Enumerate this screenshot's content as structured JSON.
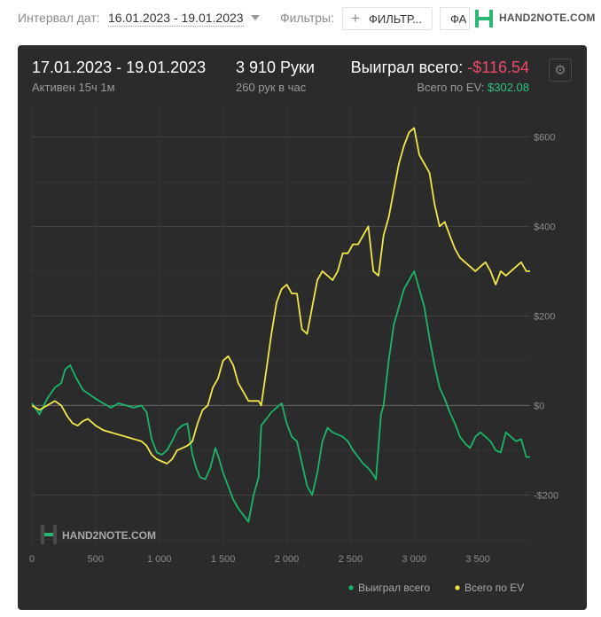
{
  "toolbar": {
    "interval_label": "Интервал дат:",
    "interval_value": "16.01.2023 - 19.01.2023",
    "filters_label": "Фильтры:",
    "filter_button": "ФИЛЬТР...",
    "fa_button": "ФА",
    "logo_text": "HAND2NOTE.COM"
  },
  "summary": {
    "date_range": "17.01.2023 - 19.01.2023",
    "active": "Активен 15ч 1м",
    "hands": "3 910 Руки",
    "hands_per_hour": "260 рук в час",
    "won_label": "Выиграл всего:",
    "won_value": "-$116.54",
    "ev_label": "Всего по EV:",
    "ev_value": "$302.08"
  },
  "watermark": "HAND2NOTE.COM",
  "colors": {
    "card_bg": "#2b2b2b",
    "won": "#1db56a",
    "ev": "#f0e84a",
    "negative": "#ec4a6d",
    "positive": "#2ec27e",
    "brand": "#2bb673"
  },
  "icons": [
    "plus-icon",
    "hand2note-logo-icon",
    "gear-icon"
  ],
  "chart_data": {
    "type": "line",
    "xlim": [
      0,
      3910
    ],
    "ylim": [
      -320,
      670
    ],
    "x_ticks": [
      0,
      500,
      1000,
      1500,
      2000,
      2500,
      3000,
      3500
    ],
    "x_tick_labels": [
      "0",
      "500",
      "1 000",
      "1 500",
      "2 000",
      "2 500",
      "3 000",
      "3 500"
    ],
    "y_ticks": [
      600,
      400,
      200,
      0,
      -200
    ],
    "y_tick_labels": [
      "$600",
      "$400",
      "$200",
      "$0",
      "-$200"
    ],
    "grid": true,
    "legend_position": "bottom-right",
    "series": [
      {
        "name": "Выиграл всего",
        "color": "#1db56a",
        "points": [
          [
            0,
            5
          ],
          [
            60,
            -20
          ],
          [
            120,
            15
          ],
          [
            180,
            40
          ],
          [
            230,
            50
          ],
          [
            260,
            80
          ],
          [
            300,
            90
          ],
          [
            350,
            60
          ],
          [
            400,
            35
          ],
          [
            450,
            25
          ],
          [
            500,
            15
          ],
          [
            560,
            5
          ],
          [
            620,
            -5
          ],
          [
            680,
            5
          ],
          [
            740,
            0
          ],
          [
            800,
            -5
          ],
          [
            860,
            0
          ],
          [
            900,
            -15
          ],
          [
            940,
            -75
          ],
          [
            980,
            -105
          ],
          [
            1020,
            -110
          ],
          [
            1060,
            -100
          ],
          [
            1100,
            -80
          ],
          [
            1140,
            -55
          ],
          [
            1180,
            -45
          ],
          [
            1220,
            -40
          ],
          [
            1260,
            -110
          ],
          [
            1290,
            -140
          ],
          [
            1320,
            -160
          ],
          [
            1360,
            -165
          ],
          [
            1400,
            -140
          ],
          [
            1440,
            -95
          ],
          [
            1470,
            -120
          ],
          [
            1500,
            -150
          ],
          [
            1540,
            -180
          ],
          [
            1580,
            -210
          ],
          [
            1620,
            -230
          ],
          [
            1660,
            -245
          ],
          [
            1700,
            -260
          ],
          [
            1740,
            -200
          ],
          [
            1780,
            -160
          ],
          [
            1800,
            -45
          ],
          [
            1840,
            -30
          ],
          [
            1880,
            -15
          ],
          [
            1920,
            -5
          ],
          [
            1960,
            5
          ],
          [
            2000,
            -40
          ],
          [
            2040,
            -70
          ],
          [
            2080,
            -80
          ],
          [
            2120,
            -130
          ],
          [
            2160,
            -180
          ],
          [
            2200,
            -200
          ],
          [
            2240,
            -150
          ],
          [
            2280,
            -80
          ],
          [
            2320,
            -50
          ],
          [
            2360,
            -60
          ],
          [
            2400,
            -65
          ],
          [
            2440,
            -70
          ],
          [
            2480,
            -80
          ],
          [
            2520,
            -100
          ],
          [
            2560,
            -115
          ],
          [
            2600,
            -130
          ],
          [
            2640,
            -140
          ],
          [
            2680,
            -155
          ],
          [
            2700,
            -165
          ],
          [
            2740,
            -20
          ],
          [
            2760,
            0
          ],
          [
            2800,
            100
          ],
          [
            2840,
            180
          ],
          [
            2880,
            220
          ],
          [
            2920,
            260
          ],
          [
            2960,
            280
          ],
          [
            3000,
            300
          ],
          [
            3040,
            260
          ],
          [
            3080,
            220
          ],
          [
            3120,
            150
          ],
          [
            3160,
            90
          ],
          [
            3200,
            40
          ],
          [
            3240,
            15
          ],
          [
            3280,
            -15
          ],
          [
            3320,
            -40
          ],
          [
            3360,
            -70
          ],
          [
            3400,
            -85
          ],
          [
            3440,
            -95
          ],
          [
            3480,
            -70
          ],
          [
            3520,
            -60
          ],
          [
            3560,
            -70
          ],
          [
            3600,
            -80
          ],
          [
            3640,
            -100
          ],
          [
            3680,
            -105
          ],
          [
            3720,
            -60
          ],
          [
            3760,
            -70
          ],
          [
            3800,
            -80
          ],
          [
            3840,
            -75
          ],
          [
            3880,
            -115
          ],
          [
            3910,
            -115
          ]
        ]
      },
      {
        "name": "Всего по EV",
        "color": "#f0e84a",
        "points": [
          [
            0,
            0
          ],
          [
            60,
            -10
          ],
          [
            120,
            0
          ],
          [
            180,
            10
          ],
          [
            230,
            0
          ],
          [
            280,
            -25
          ],
          [
            320,
            -40
          ],
          [
            360,
            -45
          ],
          [
            400,
            -35
          ],
          [
            440,
            -30
          ],
          [
            500,
            -45
          ],
          [
            560,
            -55
          ],
          [
            620,
            -60
          ],
          [
            680,
            -65
          ],
          [
            740,
            -70
          ],
          [
            800,
            -75
          ],
          [
            860,
            -80
          ],
          [
            900,
            -90
          ],
          [
            940,
            -110
          ],
          [
            980,
            -120
          ],
          [
            1020,
            -125
          ],
          [
            1060,
            -130
          ],
          [
            1100,
            -120
          ],
          [
            1140,
            -100
          ],
          [
            1180,
            -95
          ],
          [
            1220,
            -90
          ],
          [
            1260,
            -80
          ],
          [
            1300,
            -40
          ],
          [
            1340,
            -10
          ],
          [
            1380,
            0
          ],
          [
            1420,
            40
          ],
          [
            1460,
            60
          ],
          [
            1500,
            100
          ],
          [
            1540,
            110
          ],
          [
            1580,
            90
          ],
          [
            1620,
            50
          ],
          [
            1660,
            30
          ],
          [
            1700,
            10
          ],
          [
            1740,
            10
          ],
          [
            1780,
            10
          ],
          [
            1800,
            0
          ],
          [
            1840,
            80
          ],
          [
            1880,
            160
          ],
          [
            1920,
            230
          ],
          [
            1960,
            260
          ],
          [
            2000,
            270
          ],
          [
            2040,
            250
          ],
          [
            2080,
            250
          ],
          [
            2120,
            170
          ],
          [
            2160,
            160
          ],
          [
            2200,
            220
          ],
          [
            2240,
            280
          ],
          [
            2280,
            300
          ],
          [
            2320,
            290
          ],
          [
            2360,
            280
          ],
          [
            2400,
            300
          ],
          [
            2440,
            340
          ],
          [
            2480,
            340
          ],
          [
            2520,
            360
          ],
          [
            2560,
            360
          ],
          [
            2600,
            380
          ],
          [
            2640,
            400
          ],
          [
            2680,
            300
          ],
          [
            2720,
            290
          ],
          [
            2760,
            380
          ],
          [
            2800,
            420
          ],
          [
            2840,
            480
          ],
          [
            2880,
            540
          ],
          [
            2920,
            580
          ],
          [
            2960,
            610
          ],
          [
            3000,
            620
          ],
          [
            3040,
            560
          ],
          [
            3080,
            540
          ],
          [
            3120,
            520
          ],
          [
            3160,
            450
          ],
          [
            3200,
            400
          ],
          [
            3240,
            410
          ],
          [
            3280,
            380
          ],
          [
            3320,
            350
          ],
          [
            3360,
            330
          ],
          [
            3400,
            320
          ],
          [
            3440,
            310
          ],
          [
            3480,
            300
          ],
          [
            3520,
            310
          ],
          [
            3560,
            320
          ],
          [
            3600,
            300
          ],
          [
            3640,
            270
          ],
          [
            3680,
            300
          ],
          [
            3720,
            290
          ],
          [
            3760,
            300
          ],
          [
            3800,
            310
          ],
          [
            3840,
            320
          ],
          [
            3880,
            300
          ],
          [
            3910,
            300
          ]
        ]
      }
    ]
  }
}
